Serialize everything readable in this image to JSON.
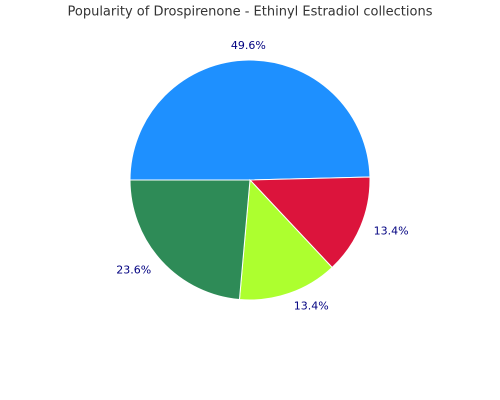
{
  "chart_data": {
    "type": "pie",
    "title": "Popularity of Drospirenone - Ethinyl Estradiol collections",
    "categories": [
      null,
      null,
      null,
      null
    ],
    "values": [
      49.6,
      13.4,
      13.4,
      23.6
    ],
    "value_labels": [
      "49.6%",
      "13.4%",
      "13.4%",
      "23.6%"
    ],
    "colors": [
      "#1e90ff",
      "#dc143c",
      "#adff2f",
      "#2e8b57"
    ]
  }
}
